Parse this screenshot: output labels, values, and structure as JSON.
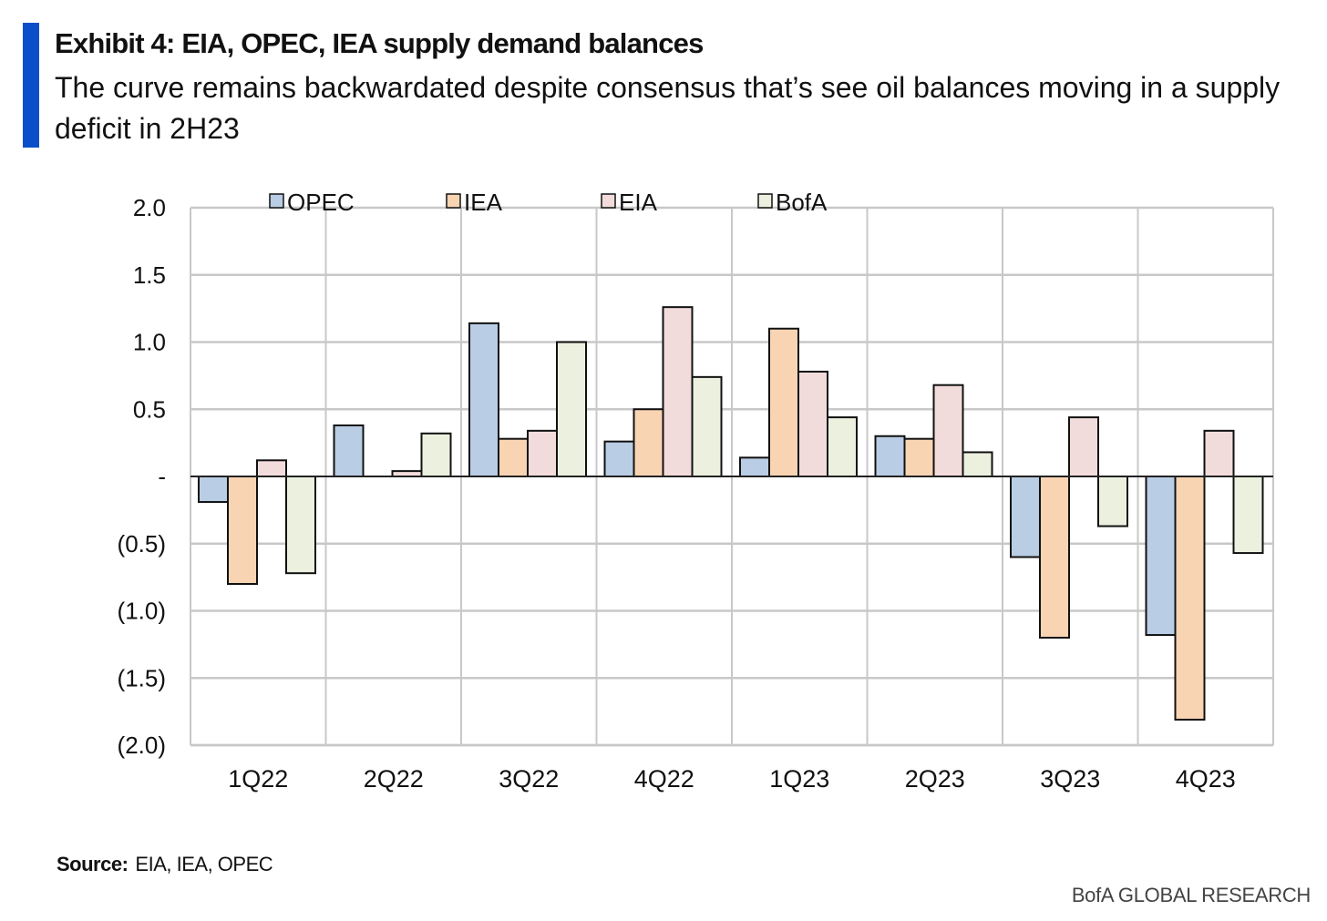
{
  "header": {
    "title": "Exhibit 4: EIA, OPEC, IEA supply demand balances",
    "subtitle": "The curve remains backwardated despite consensus that’s see oil balances moving in a supply deficit in 2H23"
  },
  "footer": {
    "source_label": "Source:",
    "source_text": "EIA, IEA, OPEC",
    "brand": "BofA GLOBAL RESEARCH"
  },
  "colors": {
    "accent": "#0a4fc9",
    "gridline": "#c8c8c8",
    "zero_line": "#222222",
    "bar_stroke": "#111111"
  },
  "chart_data": {
    "type": "bar",
    "title": "",
    "xlabel": "",
    "ylabel": "",
    "ylim": [
      -2.0,
      2.0
    ],
    "y_ticks": [
      2.0,
      1.5,
      1.0,
      0.5,
      0,
      -0.5,
      -1.0,
      -1.5,
      -2.0
    ],
    "y_tick_labels": [
      "2.0",
      "1.5",
      "1.0",
      "0.5",
      "-",
      "(0.5)",
      "(1.0)",
      "(1.5)",
      "(2.0)"
    ],
    "grid": true,
    "legend_position": "top",
    "categories": [
      "1Q22",
      "2Q22",
      "3Q22",
      "4Q22",
      "1Q23",
      "2Q23",
      "3Q23",
      "4Q23"
    ],
    "series": [
      {
        "name": "OPEC",
        "color": "#b9cde4",
        "values": [
          -0.19,
          0.38,
          1.14,
          0.26,
          0.14,
          0.3,
          -0.6,
          -1.18
        ]
      },
      {
        "name": "IEA",
        "color": "#f9d4b3",
        "values": [
          -0.8,
          0.0,
          0.28,
          0.5,
          1.1,
          0.28,
          -1.2,
          -1.81
        ]
      },
      {
        "name": "EIA",
        "color": "#f2dcdb",
        "values": [
          0.12,
          0.04,
          0.34,
          1.26,
          0.78,
          0.68,
          0.44,
          0.34
        ]
      },
      {
        "name": "BofA",
        "color": "#ebf1de",
        "values": [
          -0.72,
          0.32,
          1.0,
          0.74,
          0.44,
          0.18,
          -0.37,
          -0.57
        ]
      }
    ]
  }
}
